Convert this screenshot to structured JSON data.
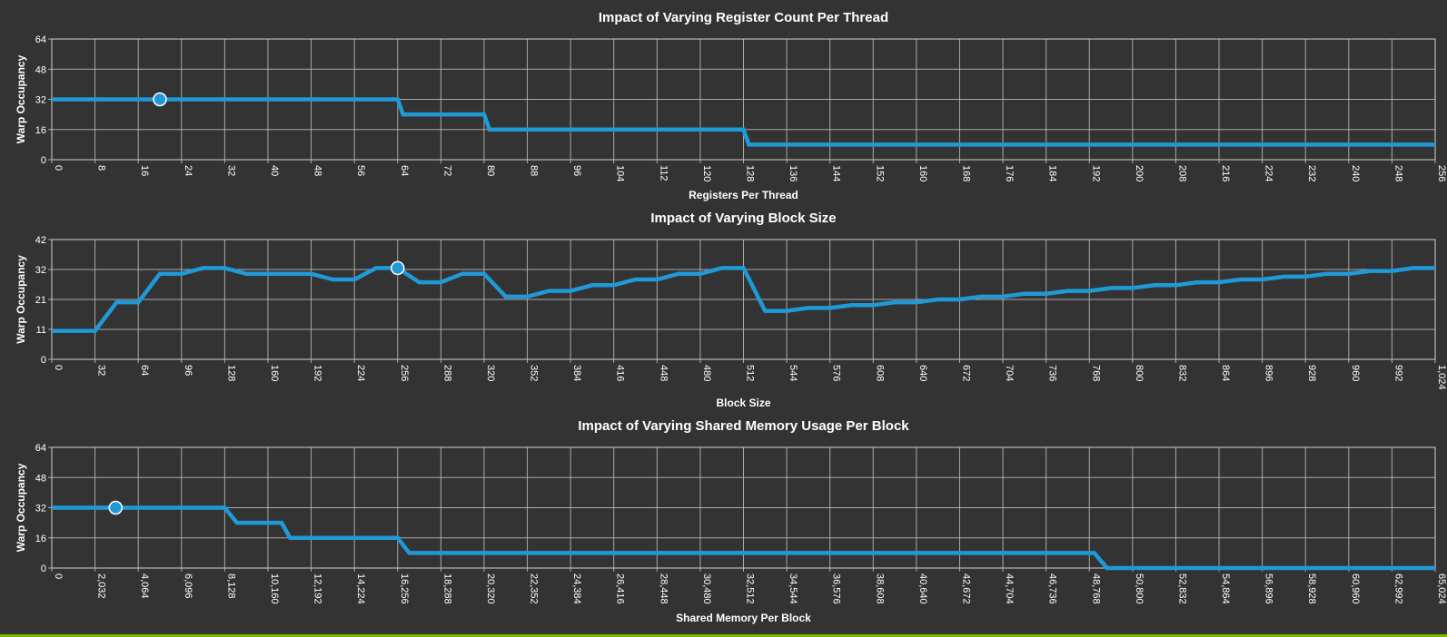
{
  "colors": {
    "background": "#333333",
    "series": "#1f9ad6",
    "accent_bar": "#76b900",
    "text": "#ffffff",
    "grid": "#bdbdbd"
  },
  "chart_data": [
    {
      "type": "line",
      "title": "Impact of Varying Register Count Per Thread",
      "xlabel": "Registers Per Thread",
      "ylabel": "Warp Occupancy",
      "xlim": [
        0,
        256
      ],
      "ylim": [
        0,
        64
      ],
      "x_ticks": [
        "0",
        "8",
        "16",
        "24",
        "32",
        "40",
        "48",
        "56",
        "64",
        "72",
        "80",
        "88",
        "96",
        "104",
        "112",
        "120",
        "128",
        "136",
        "144",
        "152",
        "160",
        "168",
        "176",
        "184",
        "192",
        "200",
        "208",
        "216",
        "224",
        "232",
        "240",
        "248",
        "256"
      ],
      "y_ticks": [
        "0",
        "16",
        "32",
        "48",
        "64"
      ],
      "grid": true,
      "series": [
        {
          "points": [
            [
              0,
              32
            ],
            [
              64,
              32
            ],
            [
              65,
              24
            ],
            [
              80,
              24
            ],
            [
              81,
              16
            ],
            [
              128,
              16
            ],
            [
              129,
              8
            ],
            [
              256,
              8
            ]
          ]
        }
      ],
      "current_point": [
        20,
        32
      ]
    },
    {
      "type": "line",
      "title": "Impact of Varying Block Size",
      "xlabel": "Block Size",
      "ylabel": "Warp Occupancy",
      "xlim": [
        0,
        1024
      ],
      "ylim": [
        0,
        42
      ],
      "x_ticks": [
        "0",
        "32",
        "64",
        "96",
        "128",
        "160",
        "192",
        "224",
        "256",
        "288",
        "320",
        "352",
        "384",
        "416",
        "448",
        "480",
        "512",
        "544",
        "576",
        "608",
        "640",
        "672",
        "704",
        "736",
        "768",
        "800",
        "832",
        "864",
        "896",
        "928",
        "960",
        "992",
        "1,024"
      ],
      "y_ticks": [
        "0",
        "11",
        "21",
        "32",
        "42"
      ],
      "grid": true,
      "series": [
        {
          "points": [
            [
              0,
              10
            ],
            [
              32,
              10
            ],
            [
              48,
              20
            ],
            [
              64,
              20
            ],
            [
              80,
              30
            ],
            [
              96,
              30
            ],
            [
              112,
              32
            ],
            [
              128,
              32
            ],
            [
              144,
              30
            ],
            [
              160,
              30
            ],
            [
              176,
              30
            ],
            [
              192,
              30
            ],
            [
              208,
              28
            ],
            [
              224,
              28
            ],
            [
              240,
              32
            ],
            [
              256,
              32
            ],
            [
              272,
              27
            ],
            [
              288,
              27
            ],
            [
              304,
              30
            ],
            [
              320,
              30
            ],
            [
              336,
              22
            ],
            [
              352,
              22
            ],
            [
              368,
              24
            ],
            [
              384,
              24
            ],
            [
              400,
              26
            ],
            [
              416,
              26
            ],
            [
              432,
              28
            ],
            [
              448,
              28
            ],
            [
              464,
              30
            ],
            [
              480,
              30
            ],
            [
              496,
              32
            ],
            [
              512,
              32
            ],
            [
              528,
              17
            ],
            [
              544,
              17
            ],
            [
              560,
              18
            ],
            [
              576,
              18
            ],
            [
              592,
              19
            ],
            [
              608,
              19
            ],
            [
              624,
              20
            ],
            [
              640,
              20
            ],
            [
              656,
              21
            ],
            [
              672,
              21
            ],
            [
              688,
              22
            ],
            [
              704,
              22
            ],
            [
              720,
              23
            ],
            [
              736,
              23
            ],
            [
              752,
              24
            ],
            [
              768,
              24
            ],
            [
              784,
              25
            ],
            [
              800,
              25
            ],
            [
              816,
              26
            ],
            [
              832,
              26
            ],
            [
              848,
              27
            ],
            [
              864,
              27
            ],
            [
              880,
              28
            ],
            [
              896,
              28
            ],
            [
              912,
              29
            ],
            [
              928,
              29
            ],
            [
              944,
              30
            ],
            [
              960,
              30
            ],
            [
              976,
              31
            ],
            [
              992,
              31
            ],
            [
              1008,
              32
            ],
            [
              1024,
              32
            ]
          ]
        }
      ],
      "current_point": [
        256,
        32
      ]
    },
    {
      "type": "line",
      "title": "Impact of Varying Shared Memory Usage Per Block",
      "xlabel": "Shared Memory Per Block",
      "ylabel": "Warp Occupancy",
      "xlim": [
        0,
        65024
      ],
      "ylim": [
        0,
        64
      ],
      "x_ticks": [
        "0",
        "2,032",
        "4,064",
        "6,096",
        "8,128",
        "10,160",
        "12,192",
        "14,224",
        "16,256",
        "18,288",
        "20,320",
        "22,352",
        "24,384",
        "26,416",
        "28,448",
        "30,480",
        "32,512",
        "34,544",
        "36,576",
        "38,608",
        "40,640",
        "42,672",
        "44,704",
        "46,736",
        "48,768",
        "50,800",
        "52,832",
        "54,864",
        "56,896",
        "58,928",
        "60,960",
        "62,992",
        "65,024"
      ],
      "y_ticks": [
        "0",
        "16",
        "32",
        "48",
        "64"
      ],
      "grid": true,
      "series": [
        {
          "points": [
            [
              0,
              32
            ],
            [
              8128,
              32
            ],
            [
              8700,
              24
            ],
            [
              10800,
              24
            ],
            [
              11200,
              16
            ],
            [
              16256,
              16
            ],
            [
              16800,
              8
            ],
            [
              49000,
              8
            ],
            [
              49600,
              0
            ],
            [
              65024,
              0
            ]
          ]
        }
      ],
      "current_point": [
        3000,
        32
      ]
    }
  ]
}
